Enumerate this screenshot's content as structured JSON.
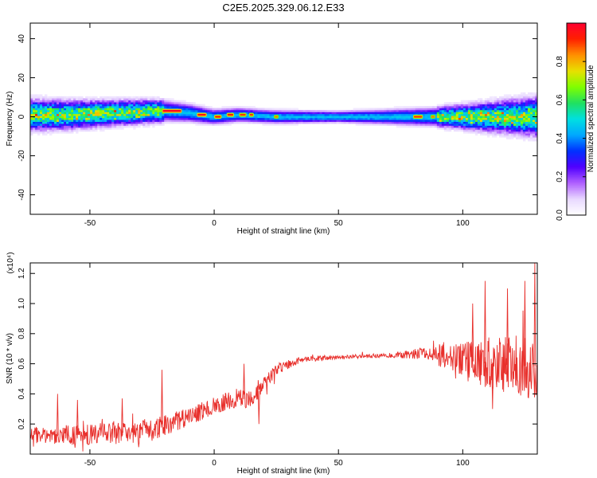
{
  "figure_title": "C2E5.2025.329.06.12.E33",
  "colors": {
    "snr_line": "#e8302c",
    "frame": "#000000",
    "background": "#ffffff",
    "colormap": [
      "#ffffff",
      "#e8d8ff",
      "#b060ff",
      "#5000ff",
      "#0030ff",
      "#00a8ff",
      "#00e0e0",
      "#20e060",
      "#80ff00",
      "#e8e000",
      "#ff9000",
      "#ff2000",
      "#ff0030"
    ]
  },
  "chart_data": [
    {
      "type": "heatmap",
      "title": "",
      "xlabel": "Height of straight line (km)",
      "ylabel": "Frequency (Hz)",
      "xlim": [
        -74,
        130
      ],
      "ylim": [
        -50,
        48
      ],
      "x_ticks": [
        -50,
        0,
        50,
        100
      ],
      "y_ticks": [
        -40,
        -20,
        0,
        20,
        40
      ],
      "colorbar": {
        "label": "Normalized spectral amplitude",
        "range": [
          0.0,
          1.0
        ],
        "ticks": [
          "0.0",
          "0.2",
          "0.4",
          "0.6",
          "0.8"
        ]
      },
      "band_center_hz": [
        {
          "x": -74,
          "f": 1
        },
        {
          "x": -60,
          "f": 1
        },
        {
          "x": -40,
          "f": 2
        },
        {
          "x": -20,
          "f": 3
        },
        {
          "x": -10,
          "f": 2
        },
        {
          "x": 0,
          "f": 0
        },
        {
          "x": 10,
          "f": 1
        },
        {
          "x": 25,
          "f": 0
        },
        {
          "x": 50,
          "f": 0
        },
        {
          "x": 80,
          "f": 0
        },
        {
          "x": 100,
          "f": 0
        },
        {
          "x": 130,
          "f": 0
        }
      ],
      "band_halfwidth_hz": [
        {
          "x": -74,
          "w": 8
        },
        {
          "x": -25,
          "w": 6
        },
        {
          "x": 0,
          "w": 4
        },
        {
          "x": 50,
          "w": 3
        },
        {
          "x": 90,
          "w": 5
        },
        {
          "x": 130,
          "w": 10
        }
      ],
      "peak_segments": [
        {
          "x0": -21,
          "x1": -13,
          "f": 3,
          "amp": 0.98
        },
        {
          "x0": -7,
          "x1": -3,
          "f": 1,
          "amp": 0.95
        },
        {
          "x0": 0,
          "x1": 3,
          "f": 0,
          "amp": 0.92
        },
        {
          "x0": 5,
          "x1": 8,
          "f": 1,
          "amp": 0.93
        },
        {
          "x0": 10,
          "x1": 13,
          "f": 1,
          "amp": 0.9
        },
        {
          "x0": 14,
          "x1": 16,
          "f": 1,
          "amp": 0.9
        },
        {
          "x0": 24,
          "x1": 26,
          "f": 0,
          "amp": 0.85
        },
        {
          "x0": 80,
          "x1": 84,
          "f": 0,
          "amp": 0.9
        },
        {
          "x0": 87,
          "x1": 89,
          "f": 0,
          "amp": 0.85
        }
      ]
    },
    {
      "type": "line",
      "title": "",
      "xlabel": "Height of straight line (km)",
      "ylabel": "SNR (10 * v/v)",
      "y_scale_label": "(x10⁴)",
      "xlim": [
        -74,
        130
      ],
      "ylim": [
        0,
        1.27
      ],
      "x_ticks": [
        -50,
        0,
        50,
        100
      ],
      "y_ticks": [
        0.2,
        0.4,
        0.6,
        0.8,
        1.0,
        1.2
      ],
      "series": [
        {
          "name": "SNR",
          "envelope": [
            {
              "x": -74,
              "mean": 0.12,
              "noise": 0.06
            },
            {
              "x": -50,
              "mean": 0.13,
              "noise": 0.07
            },
            {
              "x": -30,
              "mean": 0.15,
              "noise": 0.08
            },
            {
              "x": -22,
              "mean": 0.17,
              "noise": 0.08
            },
            {
              "x": -10,
              "mean": 0.25,
              "noise": 0.06
            },
            {
              "x": 0,
              "mean": 0.32,
              "noise": 0.06
            },
            {
              "x": 10,
              "mean": 0.37,
              "noise": 0.07
            },
            {
              "x": 15,
              "mean": 0.36,
              "noise": 0.06
            },
            {
              "x": 25,
              "mean": 0.56,
              "noise": 0.04
            },
            {
              "x": 35,
              "mean": 0.63,
              "noise": 0.02
            },
            {
              "x": 50,
              "mean": 0.645,
              "noise": 0.015
            },
            {
              "x": 70,
              "mean": 0.655,
              "noise": 0.015
            },
            {
              "x": 85,
              "mean": 0.67,
              "noise": 0.04
            },
            {
              "x": 95,
              "mean": 0.64,
              "noise": 0.1
            },
            {
              "x": 110,
              "mean": 0.6,
              "noise": 0.18
            },
            {
              "x": 130,
              "mean": 0.58,
              "noise": 0.22
            }
          ],
          "spikes": [
            {
              "x": -63,
              "y": 0.4
            },
            {
              "x": -55,
              "y": 0.36
            },
            {
              "x": -37,
              "y": 0.37
            },
            {
              "x": -21,
              "y": 0.56
            },
            {
              "x": 12,
              "y": 0.6
            },
            {
              "x": 104,
              "y": 1.0
            },
            {
              "x": 109,
              "y": 1.15
            },
            {
              "x": 118,
              "y": 1.1
            },
            {
              "x": 125,
              "y": 1.15
            },
            {
              "x": 129,
              "y": 1.27
            },
            {
              "x": 18,
              "y": 0.2
            },
            {
              "x": 112,
              "y": 0.3
            }
          ]
        }
      ]
    }
  ]
}
